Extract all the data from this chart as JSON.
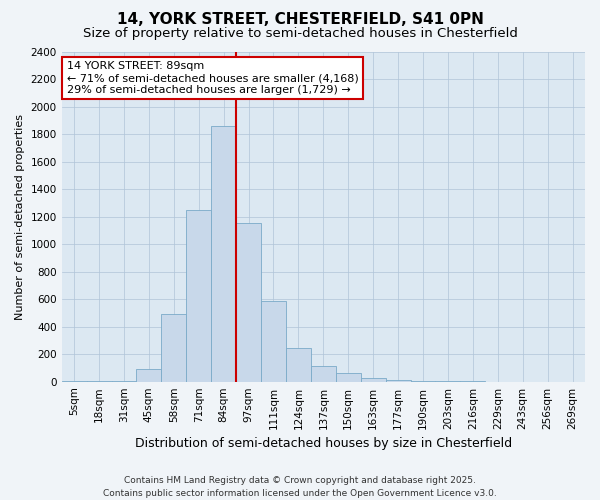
{
  "title1": "14, YORK STREET, CHESTERFIELD, S41 0PN",
  "title2": "Size of property relative to semi-detached houses in Chesterfield",
  "xlabel": "Distribution of semi-detached houses by size in Chesterfield",
  "ylabel": "Number of semi-detached properties",
  "categories": [
    "5sqm",
    "18sqm",
    "31sqm",
    "45sqm",
    "58sqm",
    "71sqm",
    "84sqm",
    "97sqm",
    "111sqm",
    "124sqm",
    "137sqm",
    "150sqm",
    "163sqm",
    "177sqm",
    "190sqm",
    "203sqm",
    "216sqm",
    "229sqm",
    "243sqm",
    "256sqm",
    "269sqm"
  ],
  "values": [
    5,
    5,
    5,
    90,
    490,
    1250,
    1860,
    1150,
    590,
    245,
    115,
    65,
    30,
    10,
    5,
    3,
    2,
    0,
    0,
    0,
    0
  ],
  "bar_color": "#c8d8ea",
  "bar_edge_color": "#7aaac8",
  "marker_bin_index": 6,
  "marker_color": "#cc0000",
  "annotation_line1": "14 YORK STREET: 89sqm",
  "annotation_line2": "← 71% of semi-detached houses are smaller (4,168)",
  "annotation_line3": "29% of semi-detached houses are larger (1,729) →",
  "annotation_box_color": "#ffffff",
  "annotation_box_edge_color": "#cc0000",
  "ylim": [
    0,
    2400
  ],
  "yticks": [
    0,
    200,
    400,
    600,
    800,
    1000,
    1200,
    1400,
    1600,
    1800,
    2000,
    2200,
    2400
  ],
  "grid_color": "#b0c4d8",
  "figure_bg_color": "#f0f4f8",
  "plot_bg_color": "#dce8f2",
  "footnote": "Contains HM Land Registry data © Crown copyright and database right 2025.\nContains public sector information licensed under the Open Government Licence v3.0.",
  "title1_fontsize": 11,
  "title2_fontsize": 9.5,
  "xlabel_fontsize": 9,
  "ylabel_fontsize": 8,
  "tick_fontsize": 7.5,
  "annotation_fontsize": 8,
  "footnote_fontsize": 6.5
}
